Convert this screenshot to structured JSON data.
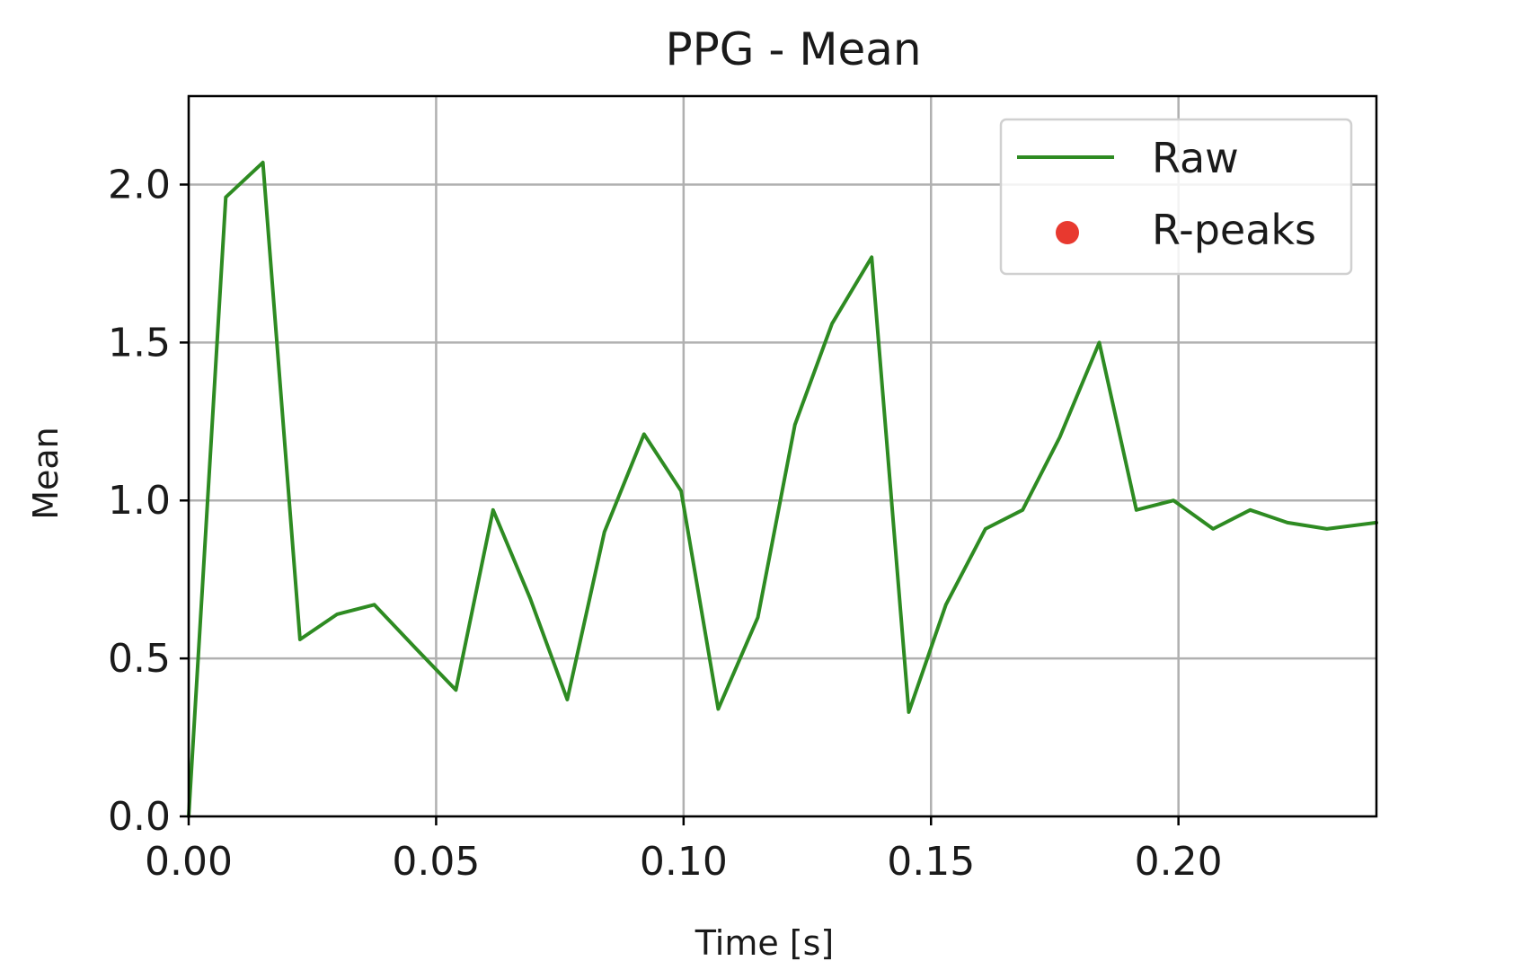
{
  "chart_data": {
    "type": "line",
    "title": "PPG - Mean",
    "xlabel": "Time [s]",
    "ylabel": "Mean",
    "xlim": [
      0,
      0.24
    ],
    "ylim": [
      0,
      2.28
    ],
    "xticks": [
      0.0,
      0.05,
      0.1,
      0.15,
      0.2
    ],
    "xtick_labels": [
      "0.00",
      "0.05",
      "0.10",
      "0.15",
      "0.20"
    ],
    "yticks": [
      0.0,
      0.5,
      1.0,
      1.5,
      2.0
    ],
    "ytick_labels": [
      "0.0",
      "0.5",
      "1.0",
      "1.5",
      "2.0"
    ],
    "grid": true,
    "legend_position": "top-right",
    "series": [
      {
        "name": "Raw",
        "kind": "line",
        "color": "#2e8b22",
        "x": [
          0.0,
          0.0075,
          0.015,
          0.0225,
          0.03,
          0.0375,
          0.046,
          0.054,
          0.0615,
          0.069,
          0.0765,
          0.084,
          0.092,
          0.0995,
          0.107,
          0.115,
          0.1225,
          0.13,
          0.138,
          0.1455,
          0.153,
          0.161,
          0.1685,
          0.176,
          0.184,
          0.1915,
          0.199,
          0.207,
          0.2145,
          0.222,
          0.23,
          0.24
        ],
        "y": [
          0.0,
          1.96,
          2.07,
          0.56,
          0.64,
          0.67,
          0.53,
          0.4,
          0.97,
          0.69,
          0.37,
          0.9,
          1.21,
          1.03,
          0.34,
          0.63,
          1.24,
          1.56,
          1.77,
          0.33,
          0.67,
          0.91,
          0.97,
          1.2,
          1.5,
          0.97,
          1.0,
          0.91,
          0.97,
          0.93,
          0.91,
          0.93
        ]
      },
      {
        "name": "R-peaks",
        "kind": "scatter",
        "color": "#e8392f",
        "x": [],
        "y": []
      }
    ]
  }
}
